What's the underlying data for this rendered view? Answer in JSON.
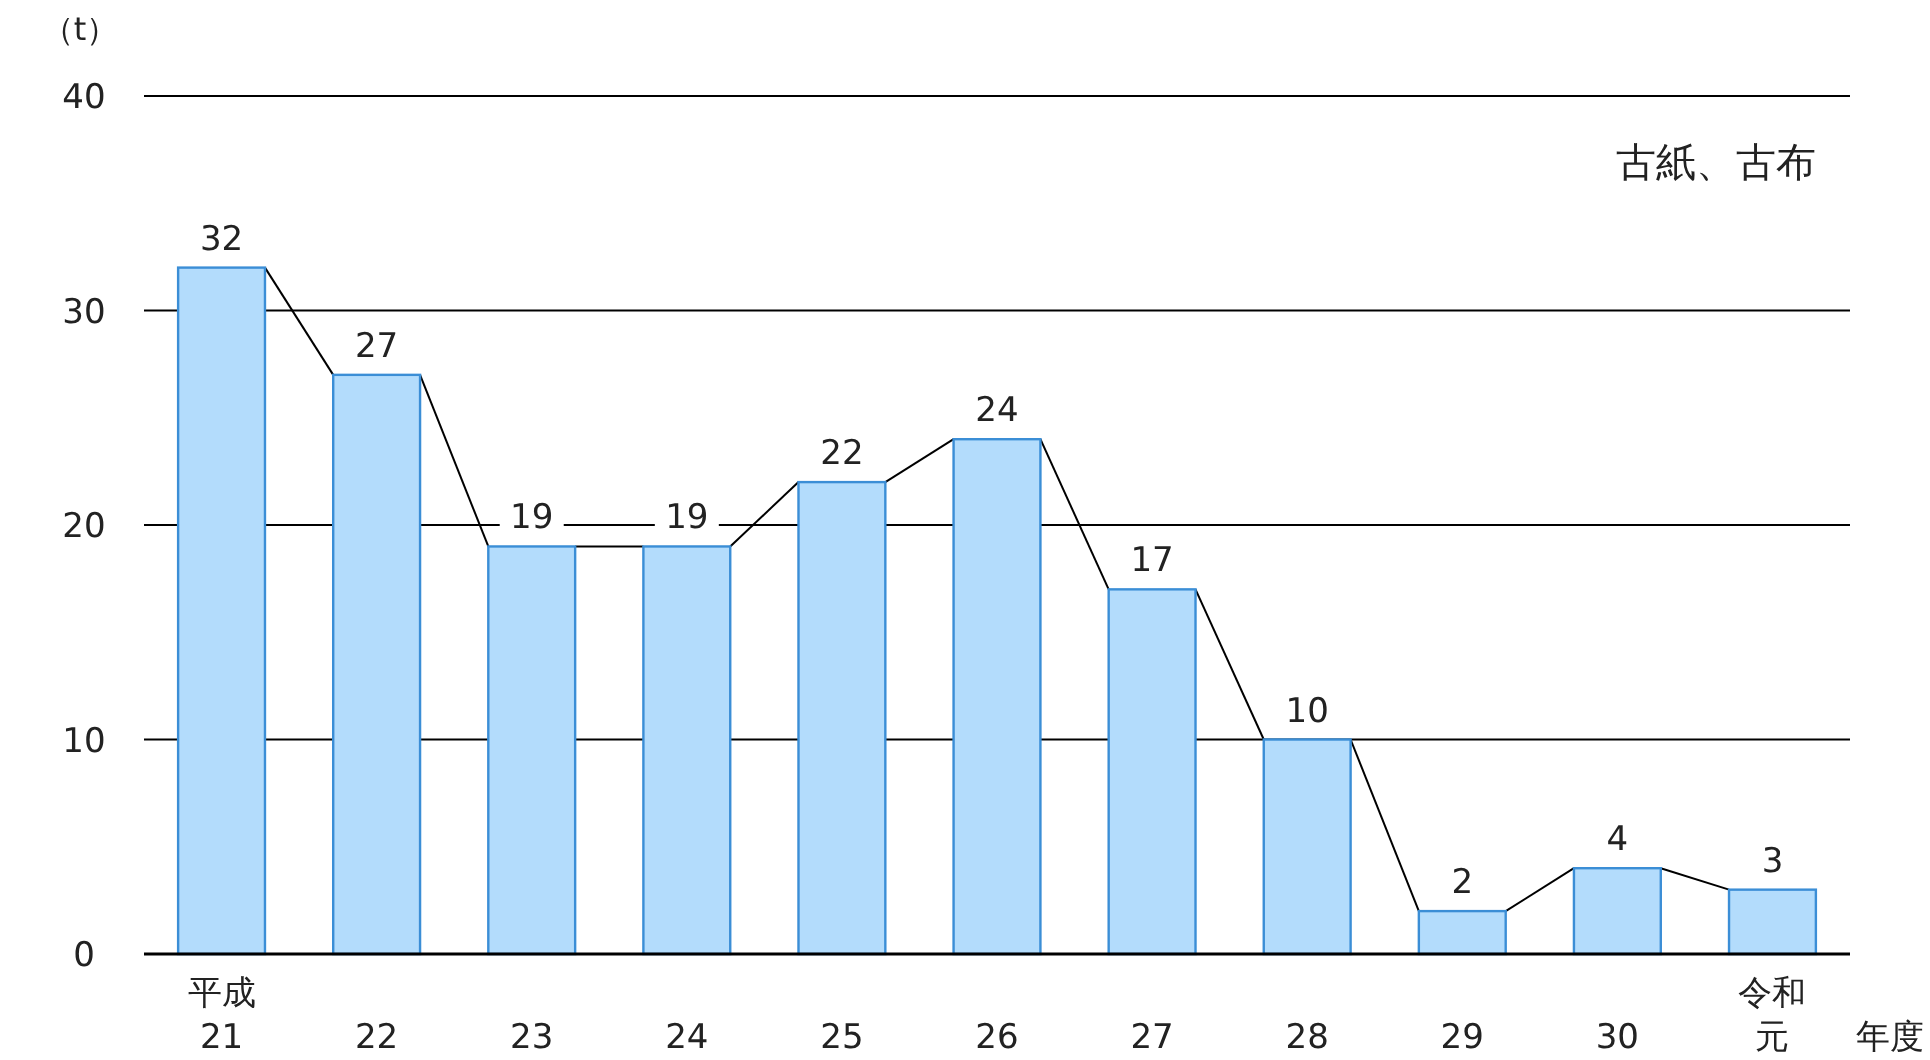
{
  "chart_data": {
    "type": "bar",
    "title": "古紙、古布",
    "ylabel": "（t）",
    "xlabel": "年度",
    "categories": [
      "平成21",
      "22",
      "23",
      "24",
      "25",
      "26",
      "27",
      "28",
      "29",
      "30",
      "令和元"
    ],
    "values": [
      32,
      27,
      19,
      19,
      22,
      24,
      17,
      10,
      2,
      4,
      3
    ],
    "color": "#b3dcfc",
    "ylim": [
      0,
      40
    ],
    "yticks": [
      0,
      10,
      20,
      30,
      40
    ],
    "grid": "y",
    "data_labels": true
  }
}
